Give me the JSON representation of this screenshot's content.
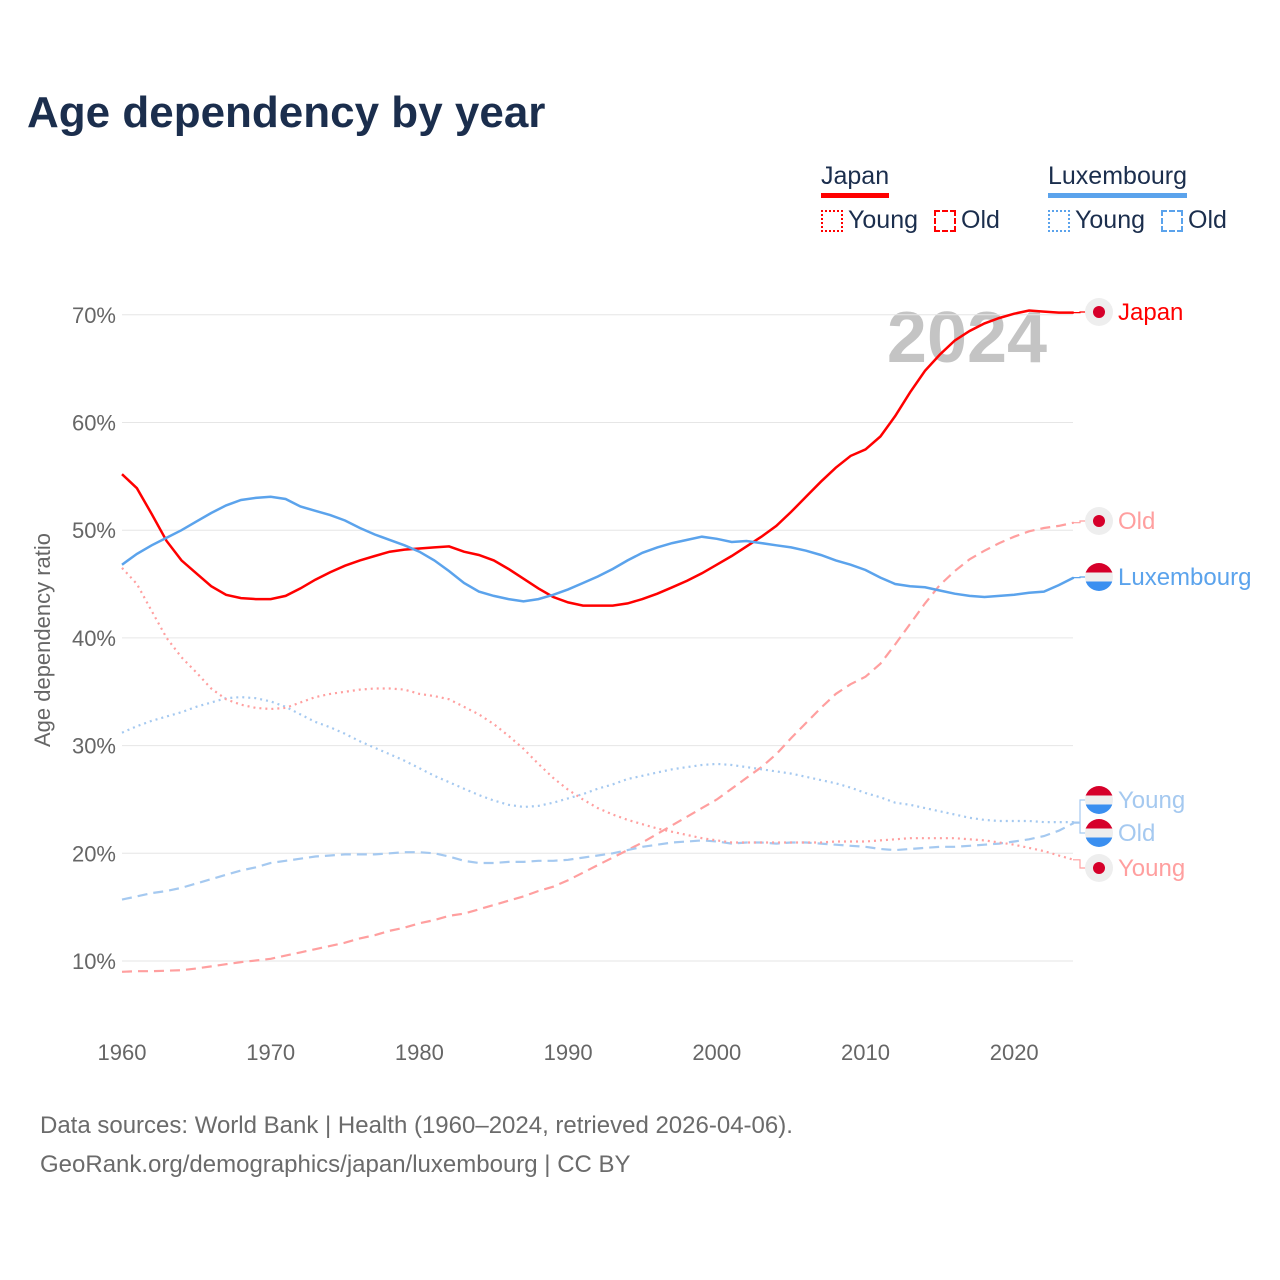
{
  "title": "Age dependency by year",
  "legend": {
    "groups": [
      {
        "country": "Japan",
        "color": "#ff0000",
        "light": "#ff9f9f",
        "young_label": "Young",
        "old_label": "Old"
      },
      {
        "country": "Luxembourg",
        "color": "#5ba3ec",
        "light": "#a5c9f0",
        "young_label": "Young",
        "old_label": "Old"
      }
    ]
  },
  "year_label": "2024",
  "source_line1": "Data sources: World Bank | Health (1960–2024, retrieved 2026-04-06).",
  "source_line2": "GeoRank.org/demographics/japan/luxembourg | CC BY",
  "chart_data": {
    "type": "line",
    "title": "Age dependency by year",
    "xlabel": "",
    "ylabel": "Age dependency ratio",
    "x_start": 1960,
    "x_end": 2024,
    "xlim": [
      1960,
      2024
    ],
    "ylim": [
      5,
      72
    ],
    "x_ticks": [
      1960,
      1970,
      1980,
      1990,
      2000,
      2010,
      2020
    ],
    "y_ticks": [
      10,
      20,
      30,
      40,
      50,
      60,
      70
    ],
    "y_tick_labels": [
      "10%",
      "20%",
      "30%",
      "40%",
      "50%",
      "60%",
      "70%"
    ],
    "grid": true,
    "legend_position": "top-right",
    "series": [
      {
        "name": "Japan",
        "end_label": "Japan",
        "country": "Japan",
        "style": "solid",
        "color": "#ff0000",
        "values": [
          55.2,
          53.9,
          51.5,
          49,
          47.2,
          46,
          44.8,
          44,
          43.7,
          43.6,
          43.6,
          43.9,
          44.6,
          45.4,
          46.1,
          46.7,
          47.2,
          47.6,
          48,
          48.2,
          48.3,
          48.4,
          48.5,
          48,
          47.7,
          47.2,
          46.4,
          45.5,
          44.6,
          43.8,
          43.3,
          43,
          43,
          43,
          43.2,
          43.6,
          44.1,
          44.7,
          45.3,
          46,
          46.8,
          47.6,
          48.5,
          49.4,
          50.4,
          51.7,
          53.1,
          54.5,
          55.8,
          56.9,
          57.5,
          58.7,
          60.6,
          62.8,
          64.8,
          66.3,
          67.6,
          68.5,
          69.2,
          69.7,
          70.1,
          70.4,
          70.3,
          70.2,
          70.2
        ]
      },
      {
        "name": "Japan Old",
        "end_label": "Old",
        "country": "Japan",
        "style": "dashed",
        "color": "#ff9f9f",
        "values": [
          9,
          9.05,
          9.05,
          9.1,
          9.15,
          9.3,
          9.5,
          9.7,
          9.9,
          10.05,
          10.2,
          10.5,
          10.8,
          11.1,
          11.4,
          11.7,
          12.1,
          12.4,
          12.8,
          13.1,
          13.5,
          13.8,
          14.2,
          14.4,
          14.8,
          15.2,
          15.6,
          16,
          16.5,
          16.9,
          17.5,
          18.2,
          18.9,
          19.6,
          20.3,
          21,
          21.8,
          22.6,
          23.4,
          24.2,
          25,
          26,
          27,
          28,
          29.2,
          30.7,
          32.1,
          33.5,
          34.8,
          35.7,
          36.4,
          37.6,
          39.4,
          41.3,
          43.2,
          44.9,
          46.2,
          47.3,
          48.1,
          48.8,
          49.4,
          49.9,
          50.2,
          50.4,
          50.7
        ]
      },
      {
        "name": "Luxembourg",
        "end_label": "Luxembourg",
        "country": "Luxembourg",
        "style": "solid",
        "color": "#5ba3ec",
        "values": [
          46.8,
          47.8,
          48.6,
          49.3,
          50,
          50.8,
          51.6,
          52.3,
          52.8,
          53,
          53.1,
          52.9,
          52.2,
          51.8,
          51.4,
          50.9,
          50.2,
          49.6,
          49.1,
          48.6,
          48,
          47.2,
          46.2,
          45.1,
          44.3,
          43.9,
          43.6,
          43.4,
          43.6,
          44,
          44.5,
          45.1,
          45.7,
          46.4,
          47.2,
          47.9,
          48.4,
          48.8,
          49.1,
          49.4,
          49.2,
          48.9,
          49,
          48.8,
          48.6,
          48.4,
          48.1,
          47.7,
          47.2,
          46.8,
          46.3,
          45.6,
          45,
          44.8,
          44.7,
          44.4,
          44.1,
          43.9,
          43.8,
          43.9,
          44,
          44.2,
          44.3,
          44.9,
          45.6
        ]
      },
      {
        "name": "Luxembourg Young",
        "end_label": "Young",
        "country": "Luxembourg",
        "style": "dotted",
        "color": "#a5c9f0",
        "values": [
          31.2,
          31.8,
          32.3,
          32.7,
          33.1,
          33.6,
          34,
          34.4,
          34.5,
          34.4,
          34.1,
          33.6,
          32.9,
          32.2,
          31.7,
          31.1,
          30.4,
          29.8,
          29.2,
          28.6,
          27.9,
          27.2,
          26.6,
          26,
          25.4,
          24.9,
          24.5,
          24.3,
          24.4,
          24.7,
          25.1,
          25.5,
          26,
          26.4,
          26.9,
          27.2,
          27.5,
          27.8,
          28,
          28.2,
          28.3,
          28.2,
          28,
          27.8,
          27.6,
          27.4,
          27.1,
          26.8,
          26.5,
          26.1,
          25.6,
          25.2,
          24.7,
          24.5,
          24.2,
          23.9,
          23.6,
          23.3,
          23.1,
          23,
          23,
          23,
          22.9,
          22.9,
          22.9
        ]
      },
      {
        "name": "Luxembourg Old",
        "end_label": "Old",
        "country": "Luxembourg",
        "style": "dashed",
        "color": "#a5c9f0",
        "values": [
          15.7,
          16,
          16.3,
          16.5,
          16.8,
          17.2,
          17.6,
          18,
          18.4,
          18.7,
          19.1,
          19.3,
          19.5,
          19.7,
          19.8,
          19.9,
          19.9,
          19.9,
          20,
          20.1,
          20.1,
          20,
          19.7,
          19.3,
          19.1,
          19.1,
          19.2,
          19.2,
          19.3,
          19.3,
          19.4,
          19.6,
          19.8,
          20,
          20.3,
          20.6,
          20.8,
          21,
          21.1,
          21.2,
          21.1,
          20.9,
          21,
          21,
          20.9,
          21,
          21,
          20.9,
          20.8,
          20.7,
          20.6,
          20.4,
          20.3,
          20.4,
          20.5,
          20.6,
          20.6,
          20.7,
          20.8,
          20.9,
          21.1,
          21.3,
          21.6,
          22.1,
          22.8
        ]
      },
      {
        "name": "Japan Young",
        "end_label": "Young",
        "country": "Japan",
        "style": "dotted",
        "color": "#ff9f9f",
        "values": [
          46.5,
          45,
          42.5,
          40,
          38.2,
          36.8,
          35.3,
          34.3,
          33.8,
          33.5,
          33.4,
          33.5,
          34,
          34.5,
          34.8,
          35,
          35.2,
          35.3,
          35.3,
          35.2,
          34.8,
          34.6,
          34.3,
          33.6,
          32.9,
          32,
          30.9,
          29.7,
          28.3,
          27,
          25.9,
          25,
          24.2,
          23.6,
          23.1,
          22.7,
          22.3,
          22,
          21.7,
          21.4,
          21.2,
          21,
          21,
          21,
          21,
          21,
          21,
          21,
          21.1,
          21.1,
          21.1,
          21.2,
          21.3,
          21.4,
          21.4,
          21.4,
          21.4,
          21.3,
          21.2,
          21,
          20.8,
          20.5,
          20.2,
          19.8,
          19.4
        ]
      }
    ]
  }
}
